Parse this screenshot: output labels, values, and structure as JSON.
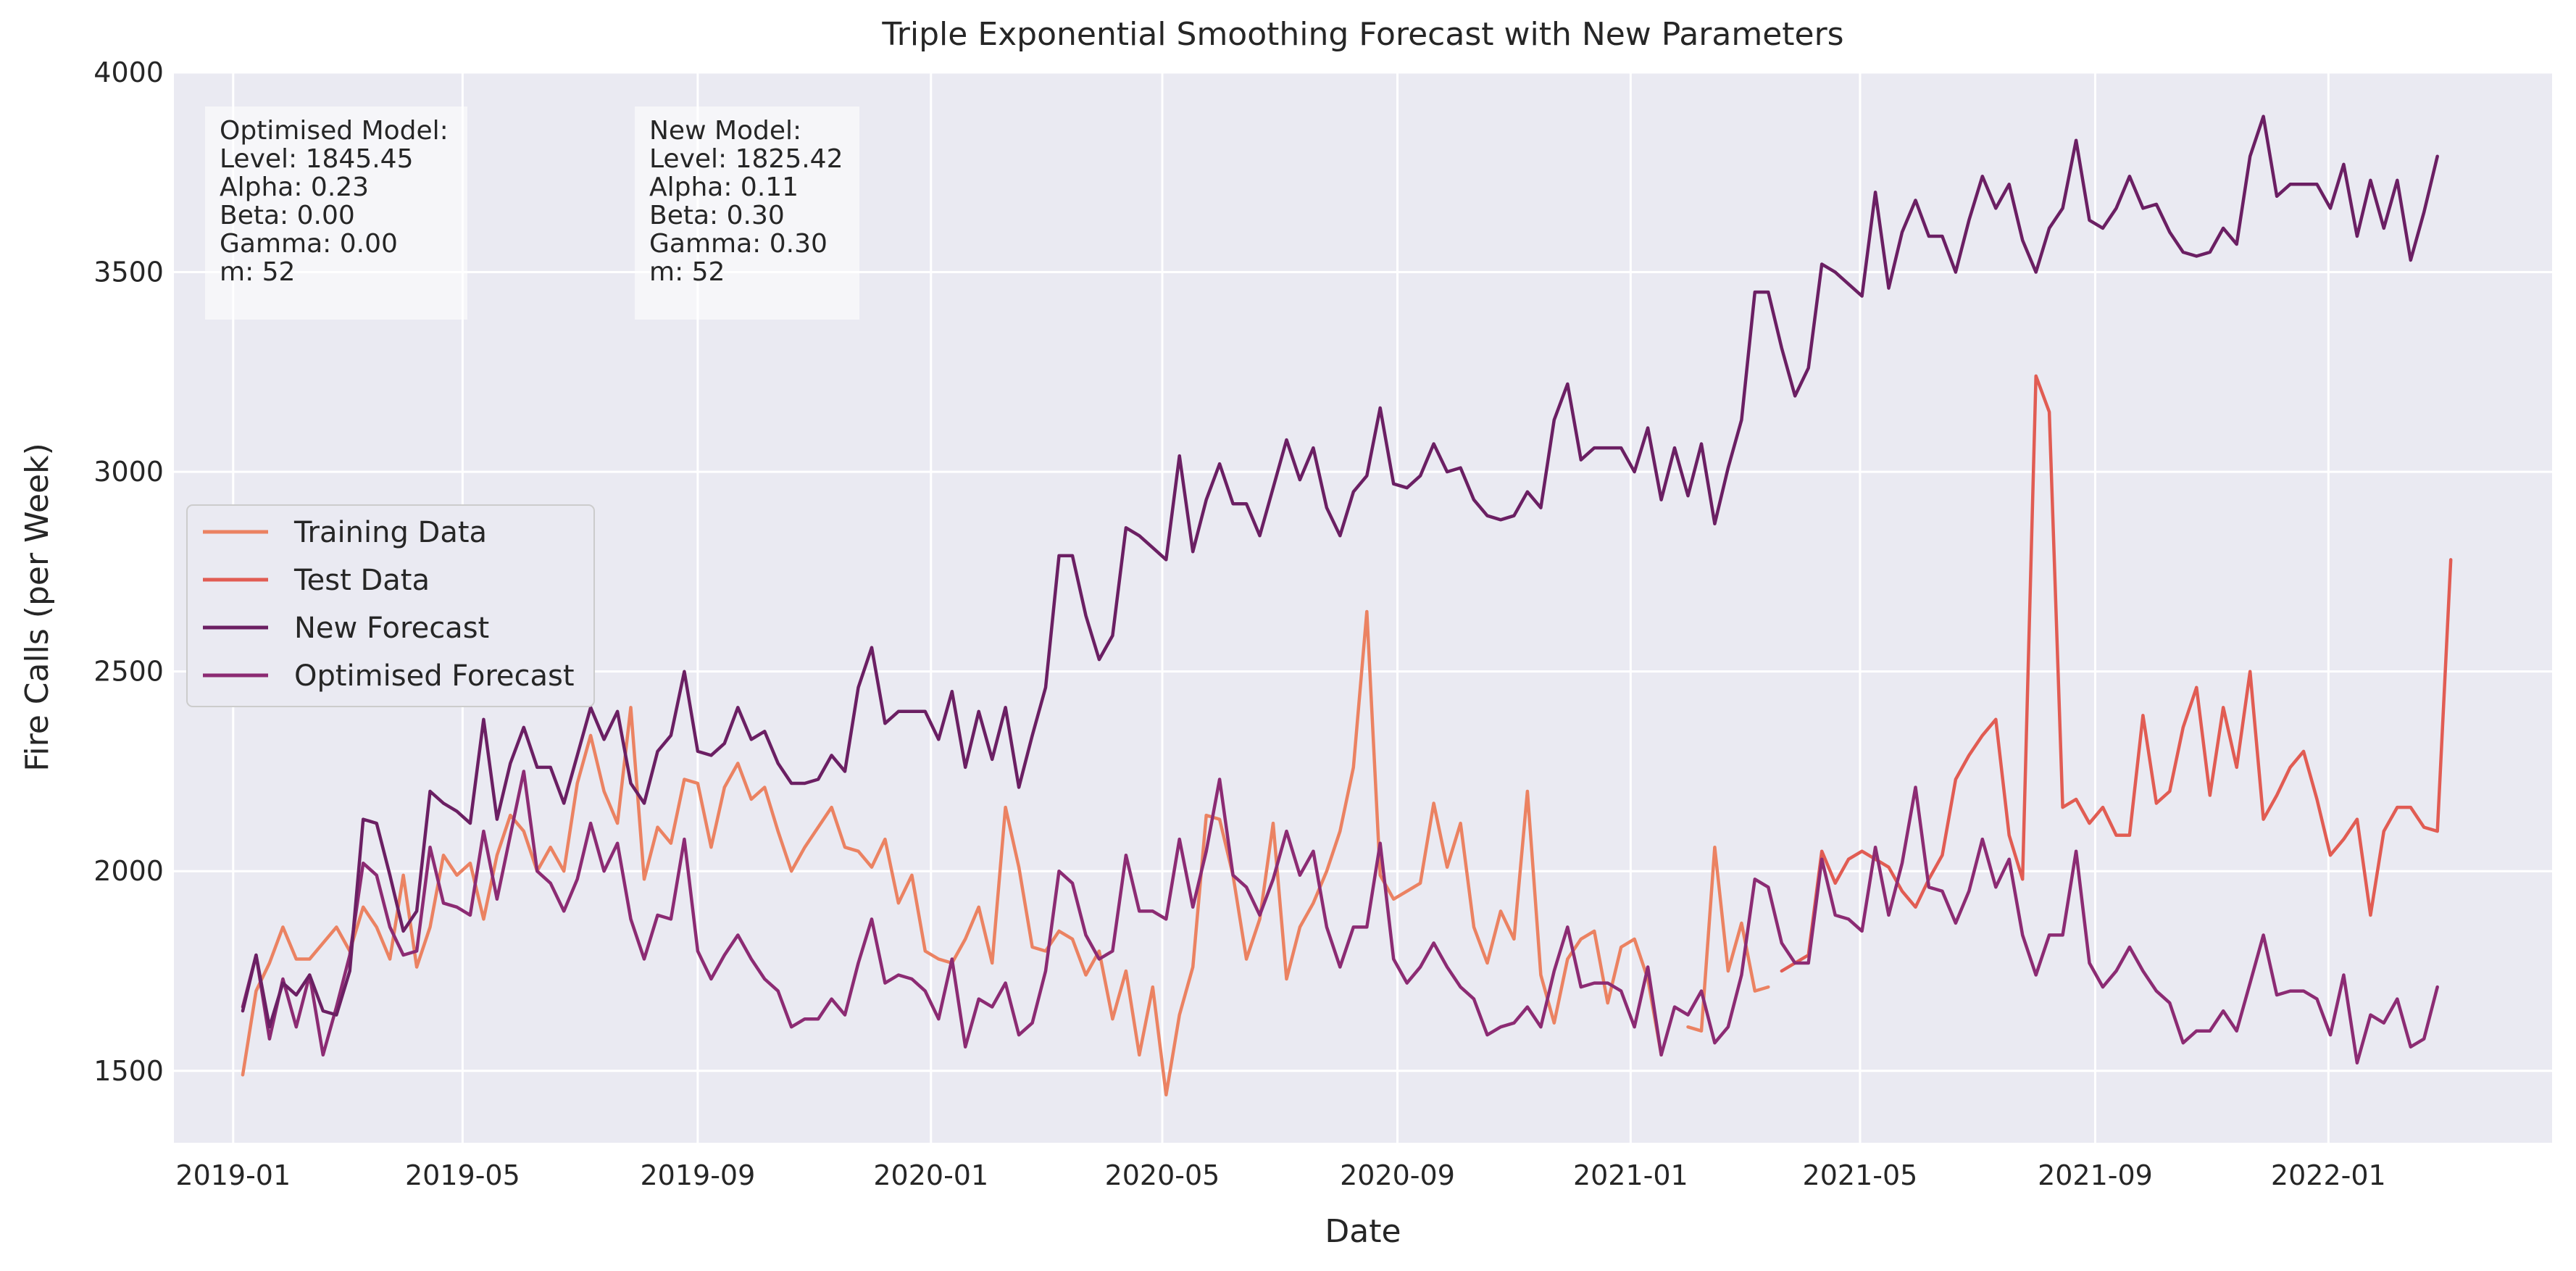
{
  "chart_data": {
    "type": "line",
    "title": "Triple Exponential Smoothing Forecast with New Parameters",
    "xlabel": "Date",
    "ylabel": "Fire Calls (per Week)",
    "xlim": [
      "2018-12-01",
      "2022-04-28"
    ],
    "ylim": [
      1320,
      4000
    ],
    "x_ticks": [
      "2019-01",
      "2019-05",
      "2019-09",
      "2020-01",
      "2020-05",
      "2020-09",
      "2021-01",
      "2021-05",
      "2021-09",
      "2022-01"
    ],
    "y_ticks": [
      1500,
      2000,
      2500,
      3000,
      3500,
      4000
    ],
    "grid": true,
    "legend_position": "center-left",
    "annotations": [
      {
        "lines": [
          "Optimised Model:",
          " Level: 1845.45",
          "Alpha: 0.23",
          "Beta: 0.00",
          "Gamma: 0.00",
          "m: 52"
        ]
      },
      {
        "lines": [
          "New Model:",
          "Level: 1825.42",
          "Alpha: 0.11",
          "Beta: 0.30",
          "Gamma: 0.30",
          "m: 52"
        ]
      }
    ],
    "series": [
      {
        "name": "Training Data",
        "color": "#eb8262",
        "start": "2019-01-06",
        "values": [
          1490,
          1700,
          1770,
          1860,
          1780,
          1780,
          1820,
          1860,
          1800,
          1910,
          1860,
          1780,
          1990,
          1760,
          1860,
          2040,
          1990,
          2020,
          1880,
          2040,
          2140,
          2100,
          2000,
          2060,
          2000,
          2220,
          2340,
          2200,
          2120,
          2410,
          1980,
          2110,
          2070,
          2230,
          2220,
          2060,
          2210,
          2270,
          2180,
          2210,
          2100,
          2000,
          2060,
          2110,
          2160,
          2060,
          2050,
          2010,
          2080,
          1920,
          1990,
          1800,
          1780,
          1770,
          1830,
          1910,
          1770,
          2160,
          2010,
          1810,
          1800,
          1850,
          1830,
          1740,
          1800,
          1630,
          1750,
          1540,
          1710,
          1440,
          1640,
          1760,
          2140,
          2130,
          1990,
          1780,
          1880,
          2120,
          1730,
          1860,
          1920,
          2000,
          2100,
          2260,
          2650,
          1990,
          1930,
          1950,
          1970,
          2170,
          2010,
          2120,
          1860,
          1770,
          1900,
          1830,
          2200,
          1740,
          1620,
          1780,
          1830,
          1850,
          1670,
          1810,
          1830,
          1730,
          1540,
          1540,
          1610,
          1600,
          2060,
          1750,
          1870,
          1700,
          1710
        ],
        "gaps": [
          [
            106,
            107
          ],
          [
            107,
            108
          ]
        ]
      },
      {
        "name": "Test Data",
        "color": "#e15c53",
        "start": "2021-03-21",
        "values": [
          1750,
          1770,
          1790,
          2050,
          1970,
          2030,
          2050,
          2030,
          2010,
          1950,
          1910,
          1980,
          2040,
          2230,
          2290,
          2340,
          2380,
          2090,
          1980,
          3240,
          3150,
          2160,
          2180,
          2120,
          2160,
          2090,
          2090,
          2390,
          2170,
          2200,
          2360,
          2460,
          2190,
          2410,
          2260,
          2500,
          2130,
          2190,
          2260,
          2300,
          2180,
          2040,
          2080,
          2130,
          1890,
          2100,
          2160,
          2160,
          2110,
          2100,
          2780
        ]
      },
      {
        "name": "New Forecast",
        "color": "#6b1f63",
        "start": "2019-01-06",
        "values": [
          1650,
          1790,
          1610,
          1720,
          1690,
          1740,
          1650,
          1640,
          1750,
          2130,
          2120,
          1990,
          1850,
          1900,
          2200,
          2170,
          2150,
          2120,
          2380,
          2130,
          2270,
          2360,
          2260,
          2260,
          2170,
          2290,
          2410,
          2330,
          2400,
          2220,
          2170,
          2300,
          2340,
          2500,
          2300,
          2290,
          2320,
          2410,
          2330,
          2350,
          2270,
          2220,
          2220,
          2230,
          2290,
          2250,
          2460,
          2560,
          2370,
          2400,
          2400,
          2400,
          2330,
          2450,
          2260,
          2400,
          2280,
          2410,
          2210,
          2340,
          2460,
          2790,
          2790,
          2640,
          2530,
          2590,
          2860,
          2840,
          2810,
          2780,
          3040,
          2800,
          2930,
          3020,
          2920,
          2920,
          2840,
          2960,
          3080,
          2980,
          3060,
          2910,
          2840,
          2950,
          2990,
          3160,
          2970,
          2960,
          2990,
          3070,
          3000,
          3010,
          2930,
          2890,
          2880,
          2890,
          2950,
          2910,
          3130,
          3220,
          3030,
          3060,
          3060,
          3060,
          3000,
          3110,
          2930,
          3060,
          2940,
          3070,
          2870,
          3010,
          3130,
          3450,
          3450,
          3310,
          3190,
          3260,
          3520,
          3500,
          3470,
          3440,
          3700,
          3460,
          3600,
          3680,
          3590,
          3590,
          3500,
          3630,
          3740,
          3660,
          3720,
          3580,
          3500,
          3610,
          3660,
          3830,
          3630,
          3610,
          3660,
          3740,
          3660,
          3670,
          3600,
          3550,
          3540,
          3550,
          3610,
          3570,
          3790,
          3890,
          3690,
          3720,
          3720,
          3720,
          3660,
          3770,
          3590,
          3730,
          3610,
          3730,
          3530,
          3650,
          3790
        ]
      },
      {
        "name": "Optimised Forecast",
        "color": "#8c2b73",
        "start": "2019-01-06",
        "values": [
          1660,
          1790,
          1580,
          1730,
          1610,
          1740,
          1540,
          1660,
          1790,
          2020,
          1990,
          1860,
          1790,
          1800,
          2060,
          1920,
          1910,
          1890,
          2100,
          1930,
          2090,
          2250,
          2000,
          1970,
          1900,
          1980,
          2120,
          2000,
          2070,
          1880,
          1780,
          1890,
          1880,
          2080,
          1800,
          1730,
          1790,
          1840,
          1780,
          1730,
          1700,
          1610,
          1630,
          1630,
          1680,
          1640,
          1770,
          1880,
          1720,
          1740,
          1730,
          1700,
          1630,
          1780,
          1560,
          1680,
          1660,
          1720,
          1590,
          1620,
          1750,
          2000,
          1970,
          1840,
          1780,
          1800,
          2040,
          1900,
          1900,
          1880,
          2080,
          1910,
          2050,
          2230,
          1990,
          1960,
          1890,
          1980,
          2100,
          1990,
          2050,
          1860,
          1760,
          1860,
          1860,
          2070,
          1780,
          1720,
          1760,
          1820,
          1760,
          1710,
          1680,
          1590,
          1610,
          1620,
          1660,
          1610,
          1750,
          1860,
          1710,
          1720,
          1720,
          1700,
          1610,
          1760,
          1540,
          1660,
          1640,
          1700,
          1570,
          1610,
          1740,
          1980,
          1960,
          1820,
          1770,
          1770,
          2030,
          1890,
          1880,
          1850,
          2060,
          1890,
          2020,
          2210,
          1960,
          1950,
          1870,
          1950,
          2080,
          1960,
          2030,
          1840,
          1740,
          1840,
          1840,
          2050,
          1770,
          1710,
          1750,
          1810,
          1750,
          1700,
          1670,
          1570,
          1600,
          1600,
          1650,
          1600,
          1720,
          1840,
          1690,
          1700,
          1700,
          1680,
          1590,
          1740,
          1520,
          1640,
          1620,
          1680,
          1560,
          1580,
          1710
        ]
      }
    ]
  }
}
